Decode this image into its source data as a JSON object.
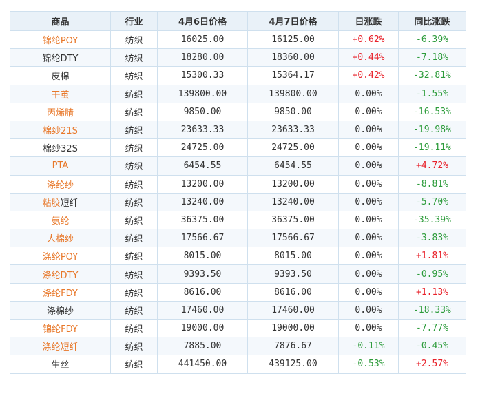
{
  "table": {
    "headers": [
      "商品",
      "行业",
      "4月6日价格",
      "4月7日价格",
      "日涨跌",
      "同比涨跌"
    ],
    "rows": [
      {
        "name": "锦纶POY",
        "linked": true,
        "industry": "纺织",
        "price1": "16025.00",
        "price2": "16125.00",
        "daily": "+0.62%",
        "daily_dir": "up",
        "yoy": "-6.39%",
        "yoy_dir": "down"
      },
      {
        "name": "锦纶DTY",
        "linked": false,
        "industry": "纺织",
        "price1": "18280.00",
        "price2": "18360.00",
        "daily": "+0.44%",
        "daily_dir": "up",
        "yoy": "-7.18%",
        "yoy_dir": "down"
      },
      {
        "name": "皮棉",
        "linked": false,
        "industry": "纺织",
        "price1": "15300.33",
        "price2": "15364.17",
        "daily": "+0.42%",
        "daily_dir": "up",
        "yoy": "-32.81%",
        "yoy_dir": "down"
      },
      {
        "name": "干茧",
        "linked": true,
        "industry": "纺织",
        "price1": "139800.00",
        "price2": "139800.00",
        "daily": "0.00%",
        "daily_dir": "flat",
        "yoy": "-1.55%",
        "yoy_dir": "down"
      },
      {
        "name": "丙烯腈",
        "linked": true,
        "industry": "纺织",
        "price1": "9850.00",
        "price2": "9850.00",
        "daily": "0.00%",
        "daily_dir": "flat",
        "yoy": "-16.53%",
        "yoy_dir": "down"
      },
      {
        "name": "棉纱21S",
        "linked": true,
        "industry": "纺织",
        "price1": "23633.33",
        "price2": "23633.33",
        "daily": "0.00%",
        "daily_dir": "flat",
        "yoy": "-19.98%",
        "yoy_dir": "down"
      },
      {
        "name": "棉纱32S",
        "linked": false,
        "industry": "纺织",
        "price1": "24725.00",
        "price2": "24725.00",
        "daily": "0.00%",
        "daily_dir": "flat",
        "yoy": "-19.11%",
        "yoy_dir": "down"
      },
      {
        "name": "PTA",
        "linked": true,
        "industry": "纺织",
        "price1": "6454.55",
        "price2": "6454.55",
        "daily": "0.00%",
        "daily_dir": "flat",
        "yoy": "+4.72%",
        "yoy_dir": "up"
      },
      {
        "name": "涤纶纱",
        "linked": true,
        "industry": "纺织",
        "price1": "13200.00",
        "price2": "13200.00",
        "daily": "0.00%",
        "daily_dir": "flat",
        "yoy": "-8.81%",
        "yoy_dir": "down"
      },
      {
        "name": "粘胶短纤",
        "linked": "partial",
        "link_part": "粘胶",
        "rest_part": "短纤",
        "industry": "纺织",
        "price1": "13240.00",
        "price2": "13240.00",
        "daily": "0.00%",
        "daily_dir": "flat",
        "yoy": "-5.70%",
        "yoy_dir": "down"
      },
      {
        "name": "氨纶",
        "linked": true,
        "industry": "纺织",
        "price1": "36375.00",
        "price2": "36375.00",
        "daily": "0.00%",
        "daily_dir": "flat",
        "yoy": "-35.39%",
        "yoy_dir": "down"
      },
      {
        "name": "人棉纱",
        "linked": true,
        "industry": "纺织",
        "price1": "17566.67",
        "price2": "17566.67",
        "daily": "0.00%",
        "daily_dir": "flat",
        "yoy": "-3.83%",
        "yoy_dir": "down"
      },
      {
        "name": "涤纶POY",
        "linked": true,
        "industry": "纺织",
        "price1": "8015.00",
        "price2": "8015.00",
        "daily": "0.00%",
        "daily_dir": "flat",
        "yoy": "+1.81%",
        "yoy_dir": "up"
      },
      {
        "name": "涤纶DTY",
        "linked": true,
        "industry": "纺织",
        "price1": "9393.50",
        "price2": "9393.50",
        "daily": "0.00%",
        "daily_dir": "flat",
        "yoy": "-0.95%",
        "yoy_dir": "down"
      },
      {
        "name": "涤纶FDY",
        "linked": true,
        "industry": "纺织",
        "price1": "8616.00",
        "price2": "8616.00",
        "daily": "0.00%",
        "daily_dir": "flat",
        "yoy": "+1.13%",
        "yoy_dir": "up"
      },
      {
        "name": "涤棉纱",
        "linked": false,
        "industry": "纺织",
        "price1": "17460.00",
        "price2": "17460.00",
        "daily": "0.00%",
        "daily_dir": "flat",
        "yoy": "-18.33%",
        "yoy_dir": "down"
      },
      {
        "name": "锦纶FDY",
        "linked": true,
        "industry": "纺织",
        "price1": "19000.00",
        "price2": "19000.00",
        "daily": "0.00%",
        "daily_dir": "flat",
        "yoy": "-7.77%",
        "yoy_dir": "down"
      },
      {
        "name": "涤纶短纤",
        "linked": true,
        "industry": "纺织",
        "price1": "7885.00",
        "price2": "7876.67",
        "daily": "-0.11%",
        "daily_dir": "down",
        "yoy": "-0.45%",
        "yoy_dir": "down"
      },
      {
        "name": "生丝",
        "linked": false,
        "industry": "纺织",
        "price1": "441450.00",
        "price2": "439125.00",
        "daily": "-0.53%",
        "daily_dir": "down",
        "yoy": "+2.57%",
        "yoy_dir": "up"
      }
    ]
  },
  "colors": {
    "link": "#e8782a",
    "up": "#e8212a",
    "down": "#2c9b3a",
    "header_bg": "#e9f1f8",
    "border": "#cfe0ee",
    "zebra": "#f4f8fc"
  }
}
